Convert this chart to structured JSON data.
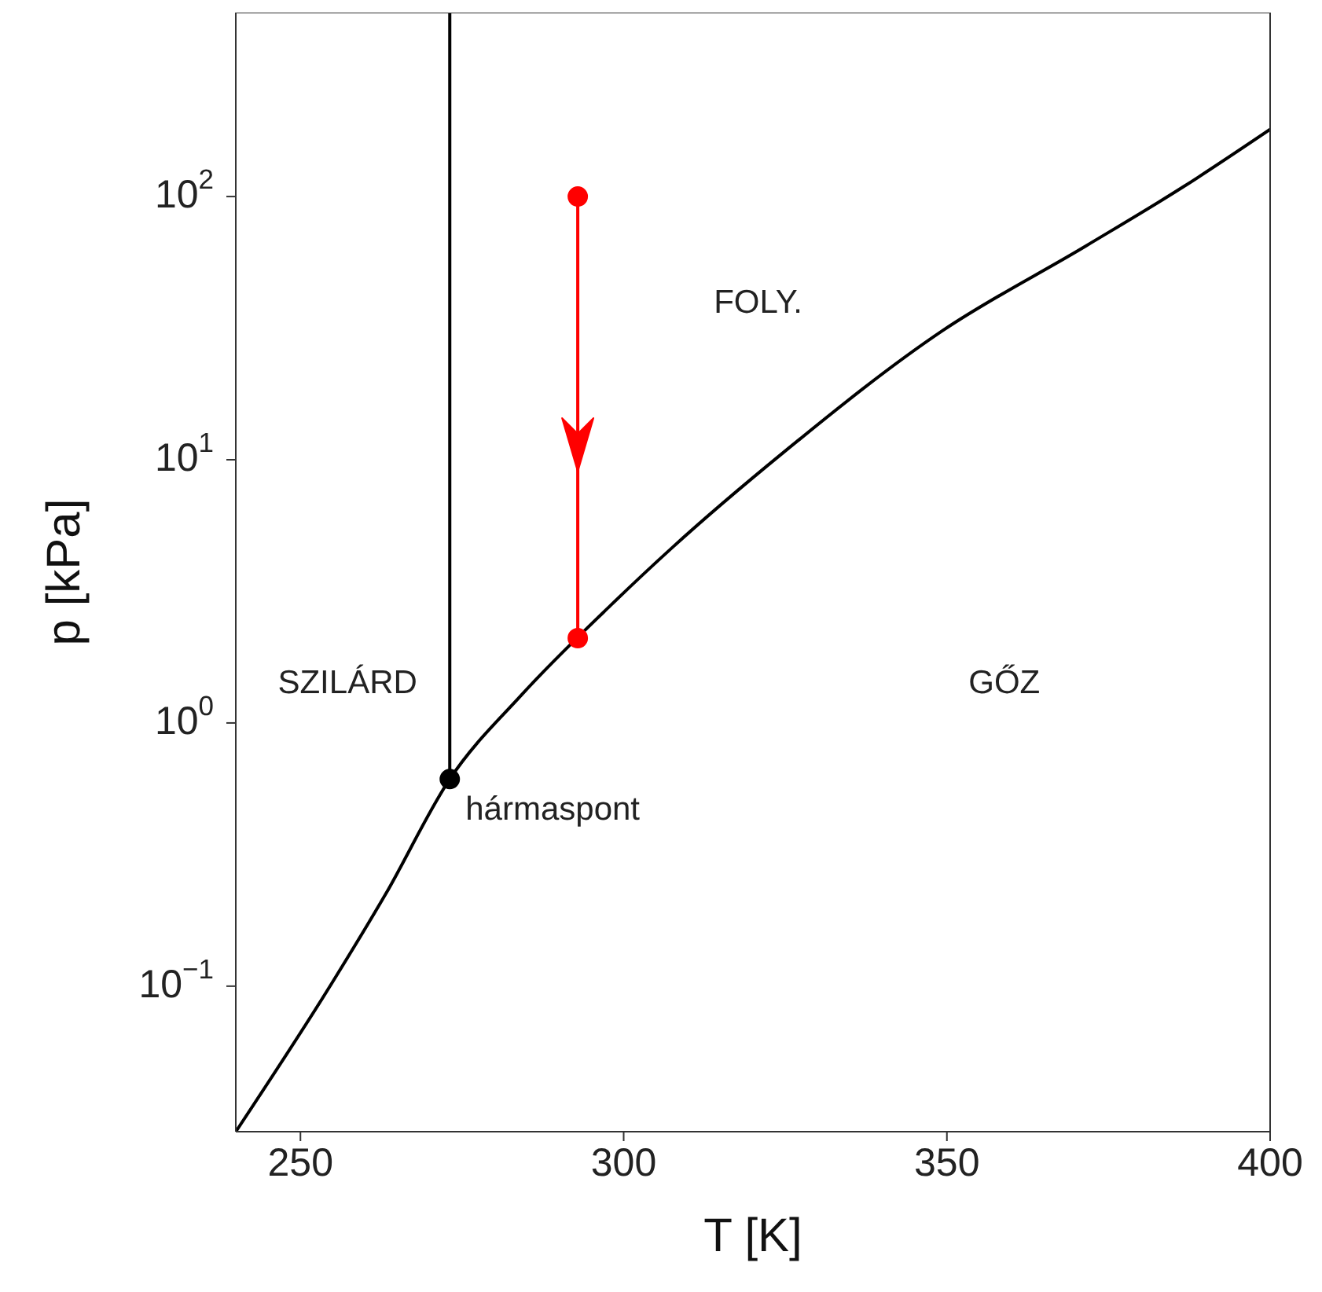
{
  "chart_data": {
    "type": "line",
    "xlabel": "T [K]",
    "ylabel": "p [kPa]",
    "log": "y",
    "line_style": "solid",
    "xlim": [
      240,
      400
    ],
    "ylim": [
      0.028,
      500
    ],
    "xticks": [
      250,
      300,
      350,
      400
    ],
    "yticks": [
      {
        "value": 0.1,
        "label": "10$^{−1}$"
      },
      {
        "value": 1,
        "label": "10$^{0}$"
      },
      {
        "value": 10,
        "label": "10$^{1}$"
      },
      {
        "value": 100,
        "label": "10$^{2}$"
      }
    ],
    "series": [
      {
        "color": "#000000",
        "marker": "none",
        "x": [
          240,
          254.9,
          263.1,
          273.1,
          284.1,
          298,
          307.4,
          324.8,
          349.3,
          371.5,
          386.6,
          400
        ],
        "values": [
          0.028,
          0.103,
          0.222,
          0.612,
          1.27,
          2.8,
          4.61,
          10.7,
          30.9,
          64.9,
          109,
          180
        ]
      },
      {
        "color": "#000000",
        "marker": "none",
        "x": [
          273.1,
          273.1
        ],
        "values": [
          0.612,
          500
        ]
      },
      {
        "type": "scatter",
        "color": "#000000",
        "marker": "circle",
        "x": [
          273.1
        ],
        "values": [
          0.612
        ]
      },
      {
        "color": "#ff0000",
        "marker": "circle",
        "x": [
          292.9,
          292.9
        ],
        "values": [
          100,
          2.1
        ]
      }
    ],
    "annotations": [
      "SZILÁRD",
      "FOLY.",
      "GŐZ",
      {
        "text": "hármaspont",
        "x": 273.1,
        "y": 0.612
      }
    ]
  }
}
